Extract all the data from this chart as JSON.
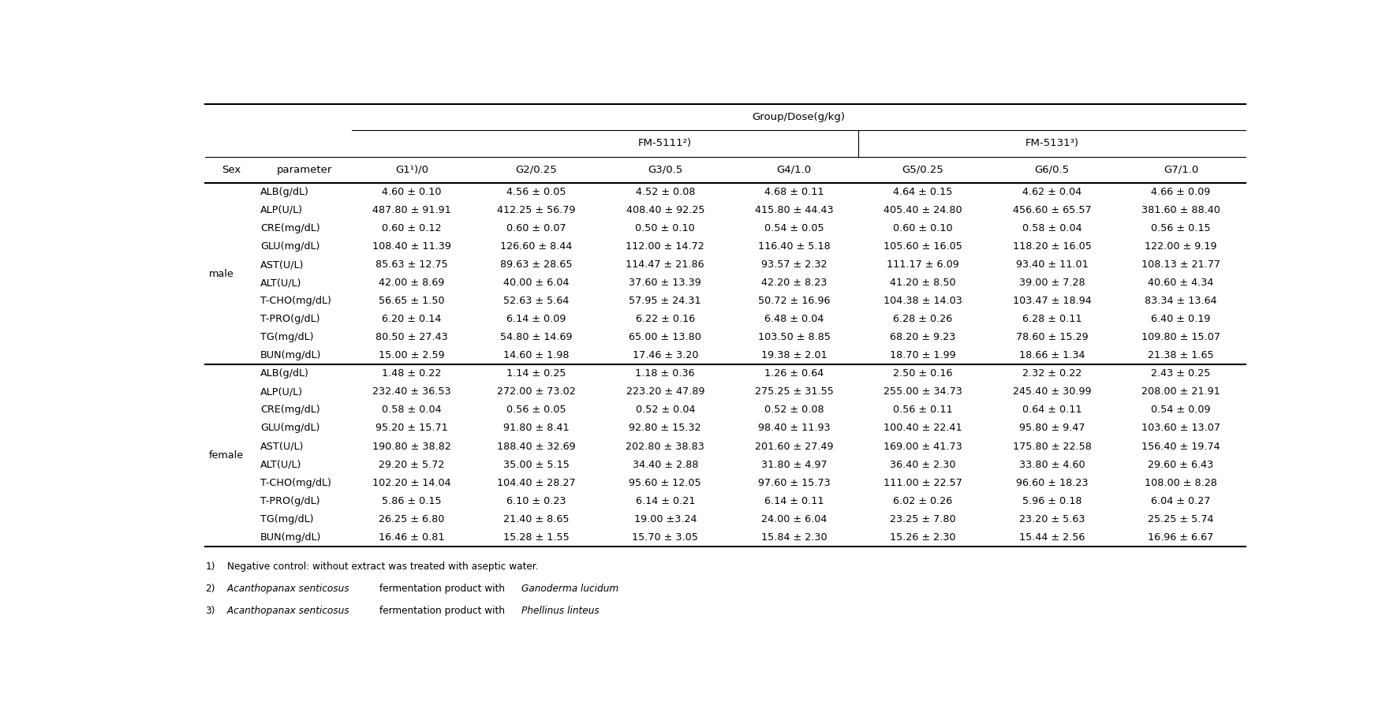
{
  "title": "Group/Dose(g/kg)",
  "fm5111_label": "FM-5111²)",
  "fm5131_label": "FM-5131³)",
  "g1_label": "G1¹)/0",
  "col_labels": [
    "Sex",
    "parameter",
    "G2/0.25",
    "G3/0.5",
    "G4/1.0",
    "G5/0.25",
    "G6/0.5",
    "G7/1.0"
  ],
  "male_rows": [
    [
      "ALB(g/dL)",
      "4.60 ± 0.10",
      "4.56 ± 0.05",
      "4.52 ± 0.08",
      "4.68 ± 0.11",
      "4.64 ± 0.15",
      "4.62 ± 0.04",
      "4.66 ± 0.09"
    ],
    [
      "ALP(U/L)",
      "487.80 ± 91.91",
      "412.25 ± 56.79",
      "408.40 ± 92.25",
      "415.80 ± 44.43",
      "405.40 ± 24.80",
      "456.60 ± 65.57",
      "381.60 ± 88.40"
    ],
    [
      "CRE(mg/dL)",
      "0.60 ± 0.12",
      "0.60 ± 0.07",
      "0.50 ± 0.10",
      "0.54 ± 0.05",
      "0.60 ± 0.10",
      "0.58 ± 0.04",
      "0.56 ± 0.15"
    ],
    [
      "GLU(mg/dL)",
      "108.40 ± 11.39",
      "126.60 ± 8.44",
      "112.00 ± 14.72",
      "116.40 ± 5.18",
      "105.60 ± 16.05",
      "118.20 ± 16.05",
      "122.00 ± 9.19"
    ],
    [
      "AST(U/L)",
      "85.63 ± 12.75",
      "89.63 ± 28.65",
      "114.47 ± 21.86",
      "93.57 ± 2.32",
      "111.17 ± 6.09",
      "93.40 ± 11.01",
      "108.13 ± 21.77"
    ],
    [
      "ALT(U/L)",
      "42.00 ± 8.69",
      "40.00 ± 6.04",
      "37.60 ± 13.39",
      "42.20 ± 8.23",
      "41.20 ± 8.50",
      "39.00 ± 7.28",
      "40.60 ± 4.34"
    ],
    [
      "T-CHO(mg/dL)",
      "56.65 ± 1.50",
      "52.63 ± 5.64",
      "57.95 ± 24.31",
      "50.72 ± 16.96",
      "104.38 ± 14.03",
      "103.47 ± 18.94",
      "83.34 ± 13.64"
    ],
    [
      "T-PRO(g/dL)",
      "6.20 ± 0.14",
      "6.14 ± 0.09",
      "6.22 ± 0.16",
      "6.48 ± 0.04",
      "6.28 ± 0.26",
      "6.28 ± 0.11",
      "6.40 ± 0.19"
    ],
    [
      "TG(mg/dL)",
      "80.50 ± 27.43",
      "54.80 ± 14.69",
      "65.00 ± 13.80",
      "103.50 ± 8.85",
      "68.20 ± 9.23",
      "78.60 ± 15.29",
      "109.80 ± 15.07"
    ],
    [
      "BUN(mg/dL)",
      "15.00 ± 2.59",
      "14.60 ± 1.98",
      "17.46 ± 3.20",
      "19.38 ± 2.01",
      "18.70 ± 1.99",
      "18.66 ± 1.34",
      "21.38 ± 1.65"
    ]
  ],
  "female_rows": [
    [
      "ALB(g/dL)",
      "1.48 ± 0.22",
      "1.14 ± 0.25",
      "1.18 ± 0.36",
      "1.26 ± 0.64",
      "2.50 ± 0.16",
      "2.32 ± 0.22",
      "2.43 ± 0.25"
    ],
    [
      "ALP(U/L)",
      "232.40 ± 36.53",
      "272.00 ± 73.02",
      "223.20 ± 47.89",
      "275.25 ± 31.55",
      "255.00 ± 34.73",
      "245.40 ± 30.99",
      "208.00 ± 21.91"
    ],
    [
      "CRE(mg/dL)",
      "0.58 ± 0.04",
      "0.56 ± 0.05",
      "0.52 ± 0.04",
      "0.52 ± 0.08",
      "0.56 ± 0.11",
      "0.64 ± 0.11",
      "0.54 ± 0.09"
    ],
    [
      "GLU(mg/dL)",
      "95.20 ± 15.71",
      "91.80 ± 8.41",
      "92.80 ± 15.32",
      "98.40 ± 11.93",
      "100.40 ± 22.41",
      "95.80 ± 9.47",
      "103.60 ± 13.07"
    ],
    [
      "AST(U/L)",
      "190.80 ± 38.82",
      "188.40 ± 32.69",
      "202.80 ± 38.83",
      "201.60 ± 27.49",
      "169.00 ± 41.73",
      "175.80 ± 22.58",
      "156.40 ± 19.74"
    ],
    [
      "ALT(U/L)",
      "29.20 ± 5.72",
      "35.00 ± 5.15",
      "34.40 ± 2.88",
      "31.80 ± 4.97",
      "36.40 ± 2.30",
      "33.80 ± 4.60",
      "29.60 ± 6.43"
    ],
    [
      "T-CHO(mg/dL)",
      "102.20 ± 14.04",
      "104.40 ± 28.27",
      "95.60 ± 12.05",
      "97.60 ± 15.73",
      "111.00 ± 22.57",
      "96.60 ± 18.23",
      "108.00 ± 8.28"
    ],
    [
      "T-PRO(g/dL)",
      "5.86 ± 0.15",
      "6.10 ± 0.23",
      "6.14 ± 0.21",
      "6.14 ± 0.11",
      "6.02 ± 0.26",
      "5.96 ± 0.18",
      "6.04 ± 0.27"
    ],
    [
      "TG(mg/dL)",
      "26.25 ± 6.80",
      "21.40 ± 8.65",
      "19.00 ±3.24",
      "24.00 ± 6.04",
      "23.25 ± 7.80",
      "23.20 ± 5.63",
      "25.25 ± 5.74"
    ],
    [
      "BUN(mg/dL)",
      "16.46 ± 0.81",
      "15.28 ± 1.55",
      "15.70 ± 3.05",
      "15.84 ± 2.30",
      "15.26 ± 2.30",
      "15.44 ± 2.56",
      "16.96 ± 6.67"
    ]
  ],
  "fn1_super": "1)",
  "fn1_text": " Negative control: without extract was treated with aseptic water.",
  "fn2_super": "2)",
  "fn2_italic1": "Acanthopanax senticosus",
  "fn2_normal": " fermentation product with ",
  "fn2_italic2": "Ganoderma lucidum",
  "fn3_super": "3)",
  "fn3_italic1": "Acanthopanax senticosus",
  "fn3_normal": " fermentation product with ",
  "fn3_italic2": "Phellinus linteus",
  "font_size": 9.2,
  "header_font_size": 9.5
}
